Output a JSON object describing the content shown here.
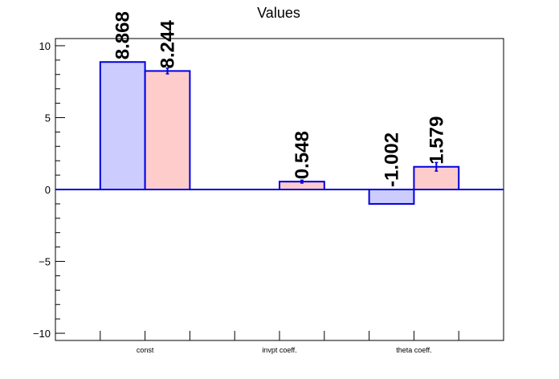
{
  "chart_data": {
    "type": "bar",
    "title": "Values",
    "categories": [
      "const",
      "invpt coeff.",
      "theta coeff."
    ],
    "ylim": [
      -10.5,
      10.5
    ],
    "yticks": [
      -10,
      -5,
      0,
      5,
      10
    ],
    "series": [
      {
        "values": [
          8.868,
          null,
          -1.002
        ],
        "errors": [
          0,
          null,
          0
        ],
        "labels": [
          "8.868",
          "",
          "-1.002"
        ],
        "fill": "#ccccff",
        "stroke": "#0000dd"
      },
      {
        "values": [
          8.244,
          0.548,
          1.579
        ],
        "errors": [
          0.2,
          0.1,
          0.3
        ],
        "labels": [
          "8.244",
          "0.548",
          "1.579"
        ],
        "fill": "#ffcccc",
        "stroke": "#0000dd"
      }
    ],
    "zero_line_color": "#0000dd",
    "grid": false
  }
}
